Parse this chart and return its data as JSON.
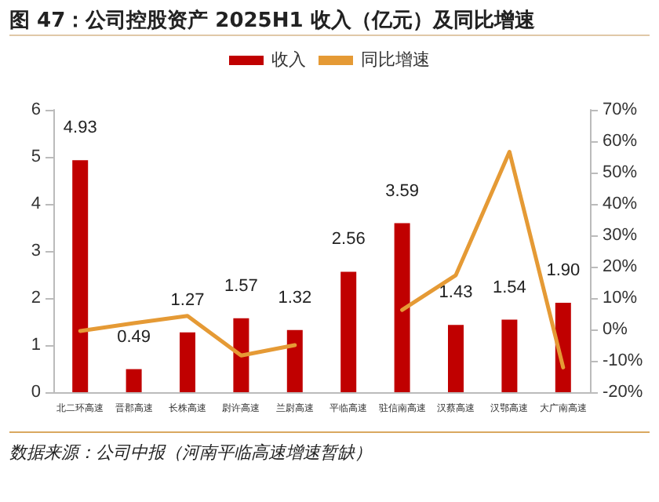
{
  "chart_data": {
    "type": "bar",
    "title": "图 47：公司控股资产 2025H1 收入（亿元）及同比增速",
    "categories": [
      "北二环高速",
      "晋郡高速",
      "长株高速",
      "尉许高速",
      "兰尉高速",
      "平临高速",
      "驻信南高速",
      "汉蔡高速",
      "汉鄂高速",
      "大广南高速"
    ],
    "series": [
      {
        "name": "收入",
        "color": "#c00000",
        "values": [
          4.93,
          0.49,
          1.27,
          1.57,
          1.32,
          2.56,
          3.59,
          1.43,
          1.54,
          1.9
        ],
        "value_labels": [
          "4.93",
          "0.49",
          "1.27",
          "1.57",
          "1.32",
          "2.56",
          "3.59",
          "1.43",
          "1.54",
          "1.90"
        ]
      },
      {
        "name": "同比增速",
        "type": "line",
        "axis": "y2",
        "color": "#e59a35",
        "values": [
          -0.5,
          2,
          4.3,
          -8.3,
          -5,
          null,
          6.2,
          17.3,
          56.6,
          -12.1
        ]
      }
    ],
    "ylim": [
      0,
      6
    ],
    "yticks": [
      0,
      1,
      2,
      3,
      4,
      5,
      6
    ],
    "y2lim": [
      -20,
      70
    ],
    "y2ticks": [
      {
        "value": -20,
        "label": "-20%"
      },
      {
        "value": -10,
        "label": "-10%"
      },
      {
        "value": 0,
        "label": "0%"
      },
      {
        "value": 10,
        "label": "10%"
      },
      {
        "value": 20,
        "label": "20%"
      },
      {
        "value": 30,
        "label": "30%"
      },
      {
        "value": 40,
        "label": "40%"
      },
      {
        "value": 50,
        "label": "50%"
      },
      {
        "value": 60,
        "label": "60%"
      },
      {
        "value": 70,
        "label": "70%"
      }
    ],
    "grid": false,
    "legend": "top",
    "marker": "none",
    "annotations": [
      "数据来源：公司中报（河南平临高速增速暂缺）"
    ]
  }
}
